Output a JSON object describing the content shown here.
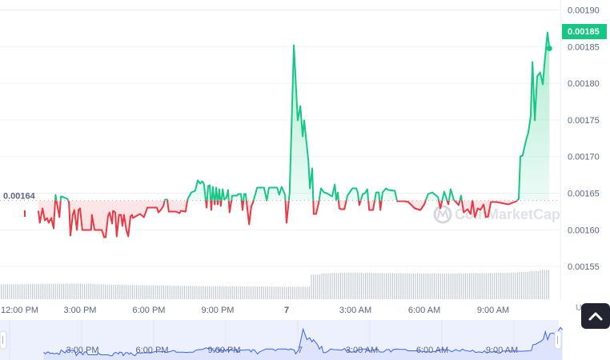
{
  "chart_data": {
    "type": "line",
    "currency": "USD",
    "current_price": "0.00185",
    "baseline_price": 0.00164,
    "baseline_label": "0.00164",
    "ylim": [
      0.00152,
      0.00191
    ],
    "y_ticks": [
      "0.00190",
      "0.00185",
      "0.00180",
      "0.00175",
      "0.00170",
      "0.00165",
      "0.00160",
      "0.00155"
    ],
    "y_tick_values": [
      0.0019,
      0.00185,
      0.0018,
      0.00175,
      0.0017,
      0.00165,
      0.0016,
      0.00155
    ],
    "x_ticks": [
      {
        "label": "12:00 PM",
        "time": "12:00"
      },
      {
        "label": "3:00 PM",
        "time": "15:00"
      },
      {
        "label": "6:00 PM",
        "time": "18:00"
      },
      {
        "label": "9:00 PM",
        "time": "21:00"
      },
      {
        "label": "7",
        "time": "24:00"
      },
      {
        "label": "3:00 AM",
        "time": "27:00"
      },
      {
        "label": "6:00 AM",
        "time": "30:00"
      },
      {
        "label": "9:00 AM",
        "time": "33:00"
      }
    ],
    "navigator_ticks": [
      "3:00 PM",
      "6:00 PM",
      "9:00 PM",
      "7",
      "3:00 AM",
      "6:00 AM",
      "9:00 AM"
    ],
    "grid": true,
    "colors": {
      "up": "#16c784",
      "down": "#ea3943",
      "navigator": "#3861fb",
      "volume": "#c5cbd6"
    },
    "watermark": "CoinMarketCap",
    "series": [
      {
        "points": [
          [
            "13:11",
            0.001626
          ],
          [
            "13:15",
            0.0016096
          ],
          [
            "13:22",
            0.0016293
          ],
          [
            "13:28",
            0.0016129
          ],
          [
            "13:34",
            0.0016162
          ],
          [
            "13:38",
            0.0016096
          ],
          [
            "13:45",
            0.0016162
          ],
          [
            "13:51",
            0.001602
          ],
          [
            "13:56",
            0.0016478
          ],
          [
            "13:59",
            0.001638
          ],
          [
            "14:06",
            0.0016172
          ],
          [
            "14:10",
            0.0016456
          ],
          [
            "14:17",
            0.0016445
          ],
          [
            "14:27",
            0.0016424
          ],
          [
            "14:31",
            0.001638
          ],
          [
            "14:35",
            0.0015921
          ],
          [
            "14:41",
            0.0016205
          ],
          [
            "14:45",
            0.0016271
          ],
          [
            "14:52",
            0.0015998
          ],
          [
            "14:56",
            0.0016271
          ],
          [
            "15:00",
            0.0016293
          ],
          [
            "15:06",
            0.0015998
          ],
          [
            "15:29",
            0.0015998
          ],
          [
            "15:31",
            0.0016205
          ],
          [
            "15:38",
            0.0015998
          ],
          [
            "15:57",
            0.0015998
          ],
          [
            "16:03",
            0.0015899
          ],
          [
            "16:07",
            0.0015899
          ],
          [
            "16:13",
            0.0016183
          ],
          [
            "16:17",
            0.0016238
          ],
          [
            "16:24",
            0.0016085
          ],
          [
            "16:26",
            0.001626
          ],
          [
            "16:32",
            0.0016238
          ],
          [
            "16:36",
            0.001591
          ],
          [
            "16:42",
            0.0016205
          ],
          [
            "16:47",
            0.0016205
          ],
          [
            "16:51",
            0.0016052
          ],
          [
            "16:55",
            0.0016205
          ],
          [
            "17:01",
            0.0015998
          ],
          [
            "17:06",
            0.001591
          ],
          [
            "17:12",
            0.0016183
          ],
          [
            "17:16",
            0.0016205
          ],
          [
            "17:18",
            0.0016162
          ],
          [
            "17:29",
            0.0016194
          ],
          [
            "17:37",
            0.0016216
          ],
          [
            "17:47",
            0.0016172
          ],
          [
            "17:56",
            0.0016303
          ],
          [
            "18:21",
            0.0016303
          ],
          [
            "18:25",
            0.0016238
          ],
          [
            "18:31",
            0.0016271
          ],
          [
            "18:38",
            0.0016325
          ],
          [
            "18:42",
            0.0016413
          ],
          [
            "18:48",
            0.0016413
          ],
          [
            "18:52",
            0.0016249
          ],
          [
            "19:11",
            0.0016249
          ],
          [
            "19:20",
            0.0016227
          ],
          [
            "19:24",
            0.001626
          ],
          [
            "19:36",
            0.0016249
          ],
          [
            "19:41",
            0.0016413
          ],
          [
            "19:51",
            0.0016511
          ],
          [
            "20:01",
            0.0016533
          ],
          [
            "20:08",
            0.0016675
          ],
          [
            "20:14",
            0.0016631
          ],
          [
            "20:20",
            0.0016664
          ],
          [
            "20:24",
            0.001662
          ],
          [
            "20:31",
            0.0016303
          ],
          [
            "20:35",
            0.0016598
          ],
          [
            "20:39",
            0.0016609
          ],
          [
            "20:43",
            0.0016271
          ],
          [
            "20:47",
            0.0016587
          ],
          [
            "20:52",
            0.0016347
          ],
          [
            "20:56",
            0.0016576
          ],
          [
            "21:00",
            0.0016347
          ],
          [
            "21:04",
            0.0016555
          ],
          [
            "21:08",
            0.0016325
          ],
          [
            "21:13",
            0.0016555
          ],
          [
            "21:17",
            0.0016413
          ],
          [
            "21:23",
            0.0016445
          ],
          [
            "21:27",
            0.0016544
          ],
          [
            "21:31",
            0.0016238
          ],
          [
            "21:38",
            0.0016467
          ],
          [
            "21:50",
            0.0016467
          ],
          [
            "21:54",
            0.0016489
          ],
          [
            "22:01",
            0.0016489
          ],
          [
            "22:05",
            0.0016271
          ],
          [
            "22:09",
            0.0016489
          ],
          [
            "22:13",
            0.0016489
          ],
          [
            "22:22",
            0.0016074
          ],
          [
            "22:28",
            0.0016325
          ],
          [
            "22:32",
            0.0016369
          ],
          [
            "22:43",
            0.0016576
          ],
          [
            "23:01",
            0.0016576
          ],
          [
            "23:08",
            0.0016402
          ],
          [
            "23:14",
            0.0016576
          ],
          [
            "23:35",
            0.0016576
          ],
          [
            "23:41",
            0.0016478
          ],
          [
            "23:47",
            0.0016587
          ],
          [
            "23:56",
            0.0016478
          ],
          [
            "00:00",
            0.0016096
          ],
          [
            "00:08",
            0.0016511
          ],
          [
            "00:19",
            0.001852
          ],
          [
            "00:29",
            0.0017493
          ],
          [
            "00:36",
            0.001769
          ],
          [
            "00:42",
            0.0017275
          ],
          [
            "00:46",
            0.0017493
          ],
          [
            "00:57",
            0.0016948
          ],
          [
            "01:01",
            0.0016566
          ],
          [
            "01:07",
            0.0016838
          ],
          [
            "01:11",
            0.0016216
          ],
          [
            "01:17",
            0.0016216
          ],
          [
            "01:24",
            0.0016369
          ],
          [
            "01:30",
            0.0016566
          ],
          [
            "01:38",
            0.0016511
          ],
          [
            "01:45",
            0.00165
          ],
          [
            "01:59",
            0.0016456
          ],
          [
            "02:06",
            0.001662
          ],
          [
            "02:10",
            0.0016402
          ],
          [
            "02:14",
            0.0016511
          ],
          [
            "02:18",
            0.0016293
          ],
          [
            "02:22",
            0.0016282
          ],
          [
            "02:31",
            0.0016282
          ],
          [
            "02:39",
            0.0016467
          ],
          [
            "02:52",
            0.0016566
          ],
          [
            "03:02",
            0.0016566
          ],
          [
            "03:06",
            0.0016511
          ],
          [
            "03:10",
            0.0016336
          ],
          [
            "03:19",
            0.0016489
          ],
          [
            "03:25",
            0.00165
          ],
          [
            "03:31",
            0.0016555
          ],
          [
            "03:36",
            0.0016271
          ],
          [
            "03:46",
            0.0016271
          ],
          [
            "03:54",
            0.0016511
          ],
          [
            "04:01",
            0.0016511
          ],
          [
            "04:05",
            0.0016271
          ],
          [
            "04:11",
            0.0016511
          ],
          [
            "04:20",
            0.0016566
          ],
          [
            "04:26",
            0.0016544
          ],
          [
            "04:43",
            0.0016533
          ],
          [
            "04:49",
            0.0016391
          ],
          [
            "05:08",
            0.0016391
          ],
          [
            "05:18",
            0.001638
          ],
          [
            "05:35",
            0.0016293
          ],
          [
            "05:50",
            0.0016271
          ],
          [
            "06:00",
            0.0016347
          ],
          [
            "06:10",
            0.0016489
          ],
          [
            "06:21",
            0.0016511
          ],
          [
            "06:36",
            0.0016445
          ],
          [
            "06:42",
            0.0016293
          ],
          [
            "06:52",
            0.0016522
          ],
          [
            "07:03",
            0.0016347
          ],
          [
            "07:09",
            0.0016555
          ],
          [
            "07:17",
            0.0016413
          ],
          [
            "07:30",
            0.0016336
          ],
          [
            "07:36",
            0.0016467
          ],
          [
            "07:43",
            0.0016238
          ],
          [
            "07:53",
            0.0016282
          ],
          [
            "08:01",
            0.0016216
          ],
          [
            "08:06",
            0.0016402
          ],
          [
            "08:12",
            0.0016172
          ],
          [
            "08:20",
            0.0016293
          ],
          [
            "08:27",
            0.0016271
          ],
          [
            "08:35",
            0.0016347
          ],
          [
            "08:41",
            0.0016172
          ],
          [
            "08:47",
            0.0016183
          ],
          [
            "08:54",
            0.001638
          ],
          [
            "09:08",
            0.001638
          ],
          [
            "09:19",
            0.0016369
          ],
          [
            "09:40",
            0.0016347
          ],
          [
            "10:01",
            0.0016391
          ],
          [
            "10:07",
            0.0016424
          ],
          [
            "10:11",
            0.0017002
          ],
          [
            "10:17",
            0.0017013
          ],
          [
            "10:26",
            0.0017221
          ],
          [
            "10:32",
            0.001733
          ],
          [
            "10:38",
            0.0017548
          ],
          [
            "10:43",
            0.001829
          ],
          [
            "10:49",
            0.0017493
          ],
          [
            "10:55",
            0.0018094
          ],
          [
            "11:03",
            0.0018148
          ],
          [
            "11:10",
            0.0017985
          ],
          [
            "11:14",
            0.0018258
          ],
          [
            "11:22",
            0.0018694
          ],
          [
            "11:27",
            0.0018476
          ]
        ]
      }
    ],
    "volume_relative": [
      0.85,
      0.85,
      0.86,
      0.87,
      0.87,
      0.88,
      0.88,
      0.88,
      0.87,
      0.85,
      0.83,
      0.82,
      0.81,
      0.8,
      0.79,
      0.78,
      0.77,
      0.76,
      0.75,
      0.74,
      0.74,
      0.73,
      0.73,
      0.72,
      0.72,
      0.72,
      0.71,
      0.71,
      0.71,
      0.71,
      1.4,
      1.48,
      1.5,
      1.51,
      1.51,
      1.5,
      1.49,
      1.48,
      1.48,
      1.47,
      1.47,
      1.47,
      1.47,
      1.47,
      1.47,
      1.48,
      1.48,
      1.49,
      1.5,
      1.52,
      1.55,
      1.6,
      1.66
    ]
  },
  "ui": {
    "currency_label": "USD",
    "scroll_top_icon": "chevron-up-icon"
  }
}
